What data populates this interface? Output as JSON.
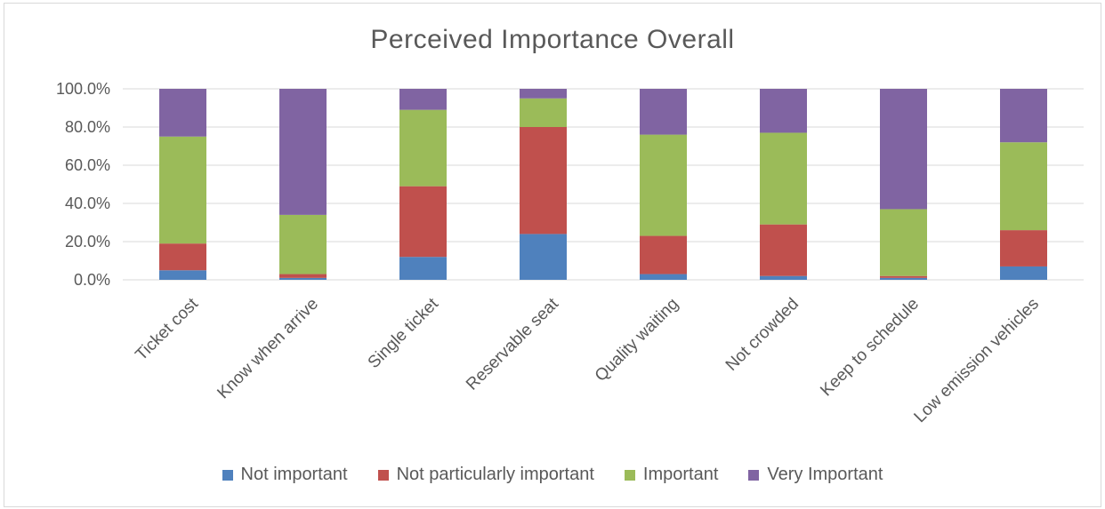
{
  "chart_data": {
    "type": "bar",
    "stacked": true,
    "title": "Perceived Importance Overall",
    "xlabel": "",
    "ylabel": "",
    "ylim": [
      0,
      100
    ],
    "y_ticks": [
      "0.0%",
      "20.0%",
      "40.0%",
      "60.0%",
      "80.0%",
      "100.0%"
    ],
    "grid": true,
    "legend_position": "bottom",
    "categories": [
      "Ticket cost",
      "Know when arrive",
      "Single ticket",
      "Reservable seat",
      "Quality waiting",
      "Not crowded",
      "Keep to schedule",
      "Low emission vehicles"
    ],
    "series": [
      {
        "name": "Not important",
        "color": "#4f81bd",
        "values": [
          5,
          1,
          12,
          24,
          3,
          2,
          1,
          7
        ]
      },
      {
        "name": "Not particularly important",
        "color": "#c0504d",
        "values": [
          14,
          2,
          37,
          56,
          20,
          27,
          1,
          19
        ]
      },
      {
        "name": "Important",
        "color": "#9bbb59",
        "values": [
          56,
          31,
          40,
          15,
          53,
          48,
          35,
          46
        ]
      },
      {
        "name": "Very Important",
        "color": "#8064a2",
        "values": [
          25,
          66,
          11,
          5,
          24,
          23,
          63,
          28
        ]
      }
    ]
  }
}
